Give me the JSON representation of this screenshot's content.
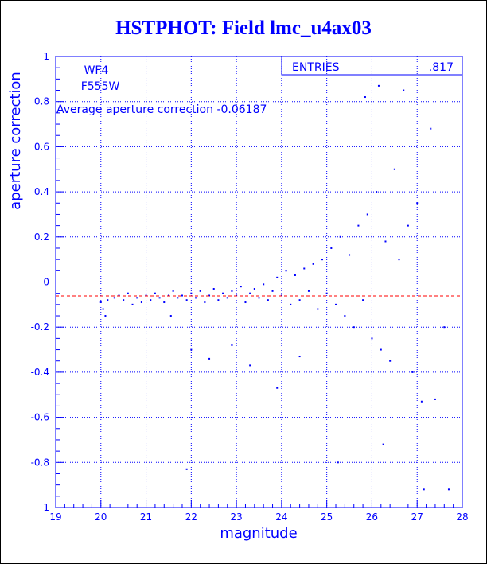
{
  "chart_data": {
    "type": "scatter",
    "title": "HSTPHOT: Field lmc_u4ax03",
    "xlabel": "magnitude",
    "ylabel": "aperture correction",
    "xlim": [
      19,
      28
    ],
    "ylim": [
      -1,
      1
    ],
    "x_ticks": [
      19,
      20,
      21,
      22,
      23,
      24,
      25,
      26,
      27,
      28
    ],
    "y_ticks": [
      -1,
      -0.8,
      -0.6,
      -0.4,
      -0.2,
      0,
      0.2,
      0.4,
      0.6,
      0.8,
      1
    ],
    "grid": true,
    "annotations": {
      "chip": "WF4",
      "filter": "F555W",
      "average": "Average aperture correction -0.06187",
      "entries_label": "ENTRIES",
      "entries_value": ".817"
    },
    "reference_line": {
      "y": -0.06187,
      "style": "dashed",
      "color": "#ff0000"
    },
    "point_color": "#0000ff",
    "points": [
      [
        20.0,
        -0.09
      ],
      [
        20.05,
        -0.12
      ],
      [
        20.1,
        -0.15
      ],
      [
        20.15,
        -0.08
      ],
      [
        20.3,
        -0.07
      ],
      [
        20.4,
        -0.06
      ],
      [
        20.5,
        -0.08
      ],
      [
        20.6,
        -0.05
      ],
      [
        20.7,
        -0.1
      ],
      [
        20.8,
        -0.07
      ],
      [
        20.9,
        -0.09
      ],
      [
        21.0,
        -0.06
      ],
      [
        21.1,
        -0.08
      ],
      [
        21.2,
        -0.05
      ],
      [
        21.3,
        -0.07
      ],
      [
        21.4,
        -0.09
      ],
      [
        21.5,
        -0.06
      ],
      [
        21.55,
        -0.15
      ],
      [
        21.6,
        -0.04
      ],
      [
        21.7,
        -0.07
      ],
      [
        21.8,
        -0.06
      ],
      [
        21.9,
        -0.08
      ],
      [
        22.0,
        -0.05
      ],
      [
        22.0,
        -0.3
      ],
      [
        22.1,
        -0.07
      ],
      [
        22.2,
        -0.04
      ],
      [
        22.3,
        -0.09
      ],
      [
        22.4,
        -0.06
      ],
      [
        22.5,
        -0.03
      ],
      [
        22.6,
        -0.08
      ],
      [
        22.7,
        -0.05
      ],
      [
        22.8,
        -0.07
      ],
      [
        22.9,
        -0.04
      ],
      [
        23.0,
        -0.06
      ],
      [
        23.1,
        -0.02
      ],
      [
        23.2,
        -0.09
      ],
      [
        23.3,
        -0.05
      ],
      [
        23.4,
        -0.03
      ],
      [
        23.5,
        -0.07
      ],
      [
        23.6,
        -0.01
      ],
      [
        23.7,
        -0.08
      ],
      [
        23.8,
        -0.04
      ],
      [
        23.9,
        0.02
      ],
      [
        24.0,
        -0.06
      ],
      [
        24.1,
        0.05
      ],
      [
        24.2,
        -0.1
      ],
      [
        24.3,
        0.03
      ],
      [
        24.4,
        -0.08
      ],
      [
        24.5,
        0.06
      ],
      [
        24.6,
        -0.04
      ],
      [
        24.7,
        0.08
      ],
      [
        24.8,
        -0.12
      ],
      [
        24.9,
        0.1
      ],
      [
        25.0,
        -0.05
      ],
      [
        25.1,
        0.15
      ],
      [
        25.2,
        -0.1
      ],
      [
        25.3,
        0.2
      ],
      [
        25.4,
        -0.15
      ],
      [
        25.5,
        0.12
      ],
      [
        25.6,
        -0.2
      ],
      [
        25.7,
        0.25
      ],
      [
        25.8,
        -0.08
      ],
      [
        25.85,
        0.82
      ],
      [
        25.9,
        0.3
      ],
      [
        26.0,
        -0.25
      ],
      [
        26.1,
        0.4
      ],
      [
        26.15,
        0.87
      ],
      [
        26.2,
        -0.3
      ],
      [
        26.3,
        0.18
      ],
      [
        26.4,
        -0.35
      ],
      [
        26.5,
        0.5
      ],
      [
        26.6,
        0.1
      ],
      [
        26.7,
        0.85
      ],
      [
        26.8,
        0.25
      ],
      [
        26.9,
        -0.4
      ],
      [
        27.0,
        0.35
      ],
      [
        27.1,
        -0.53
      ],
      [
        27.15,
        -0.92
      ],
      [
        27.3,
        0.68
      ],
      [
        27.4,
        -0.52
      ],
      [
        27.6,
        -0.2
      ],
      [
        27.7,
        -0.92
      ],
      [
        21.9,
        -0.83
      ],
      [
        22.4,
        -0.34
      ],
      [
        22.9,
        -0.28
      ],
      [
        23.3,
        -0.37
      ],
      [
        23.9,
        -0.47
      ],
      [
        24.4,
        -0.33
      ],
      [
        25.25,
        -0.8
      ],
      [
        26.25,
        -0.72
      ]
    ]
  }
}
